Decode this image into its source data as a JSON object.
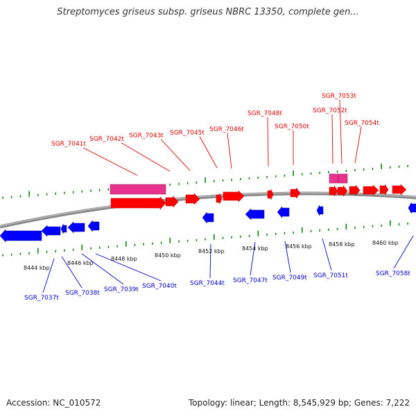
{
  "title": "Streptomyces griseus subsp. griseus NBRC 13350, complete gen...",
  "footer": {
    "accession": "Accession: NC_010572",
    "summary": "Topology: linear; Length: 8,545,929 bp; Genes: 7,222"
  },
  "colors": {
    "forward_gene": "#ff0000",
    "forward_rna": "#e8338e",
    "reverse_gene": "#0000ff",
    "forward_label": "#dd0000",
    "reverse_label": "#0000cc",
    "backbone": "#888888",
    "tick": "#008800"
  },
  "ruler_labels": [
    "8444 kbp",
    "8446 kbp",
    "8448 kbp",
    "8450 kbp",
    "8452 kbp",
    "8454 kbp",
    "8456 kbp",
    "8458 kbp",
    "8460 kbp"
  ],
  "forward_labels": [
    "SGR_7041t",
    "SGR_7042t",
    "SGR_7043t",
    "SGR_7045t",
    "SGR_7046t",
    "SGR_7048t",
    "SGR_7050t",
    "SGR_7052t",
    "SGR_7053t",
    "SGR_7054t"
  ],
  "reverse_labels": [
    "SGR_7037t",
    "SGR_7038t",
    "SGR_7039t",
    "SGR_7040t",
    "SGR_7044t",
    "SGR_7047t",
    "SGR_7049t",
    "SGR_7051t",
    "SGR_7058t"
  ]
}
